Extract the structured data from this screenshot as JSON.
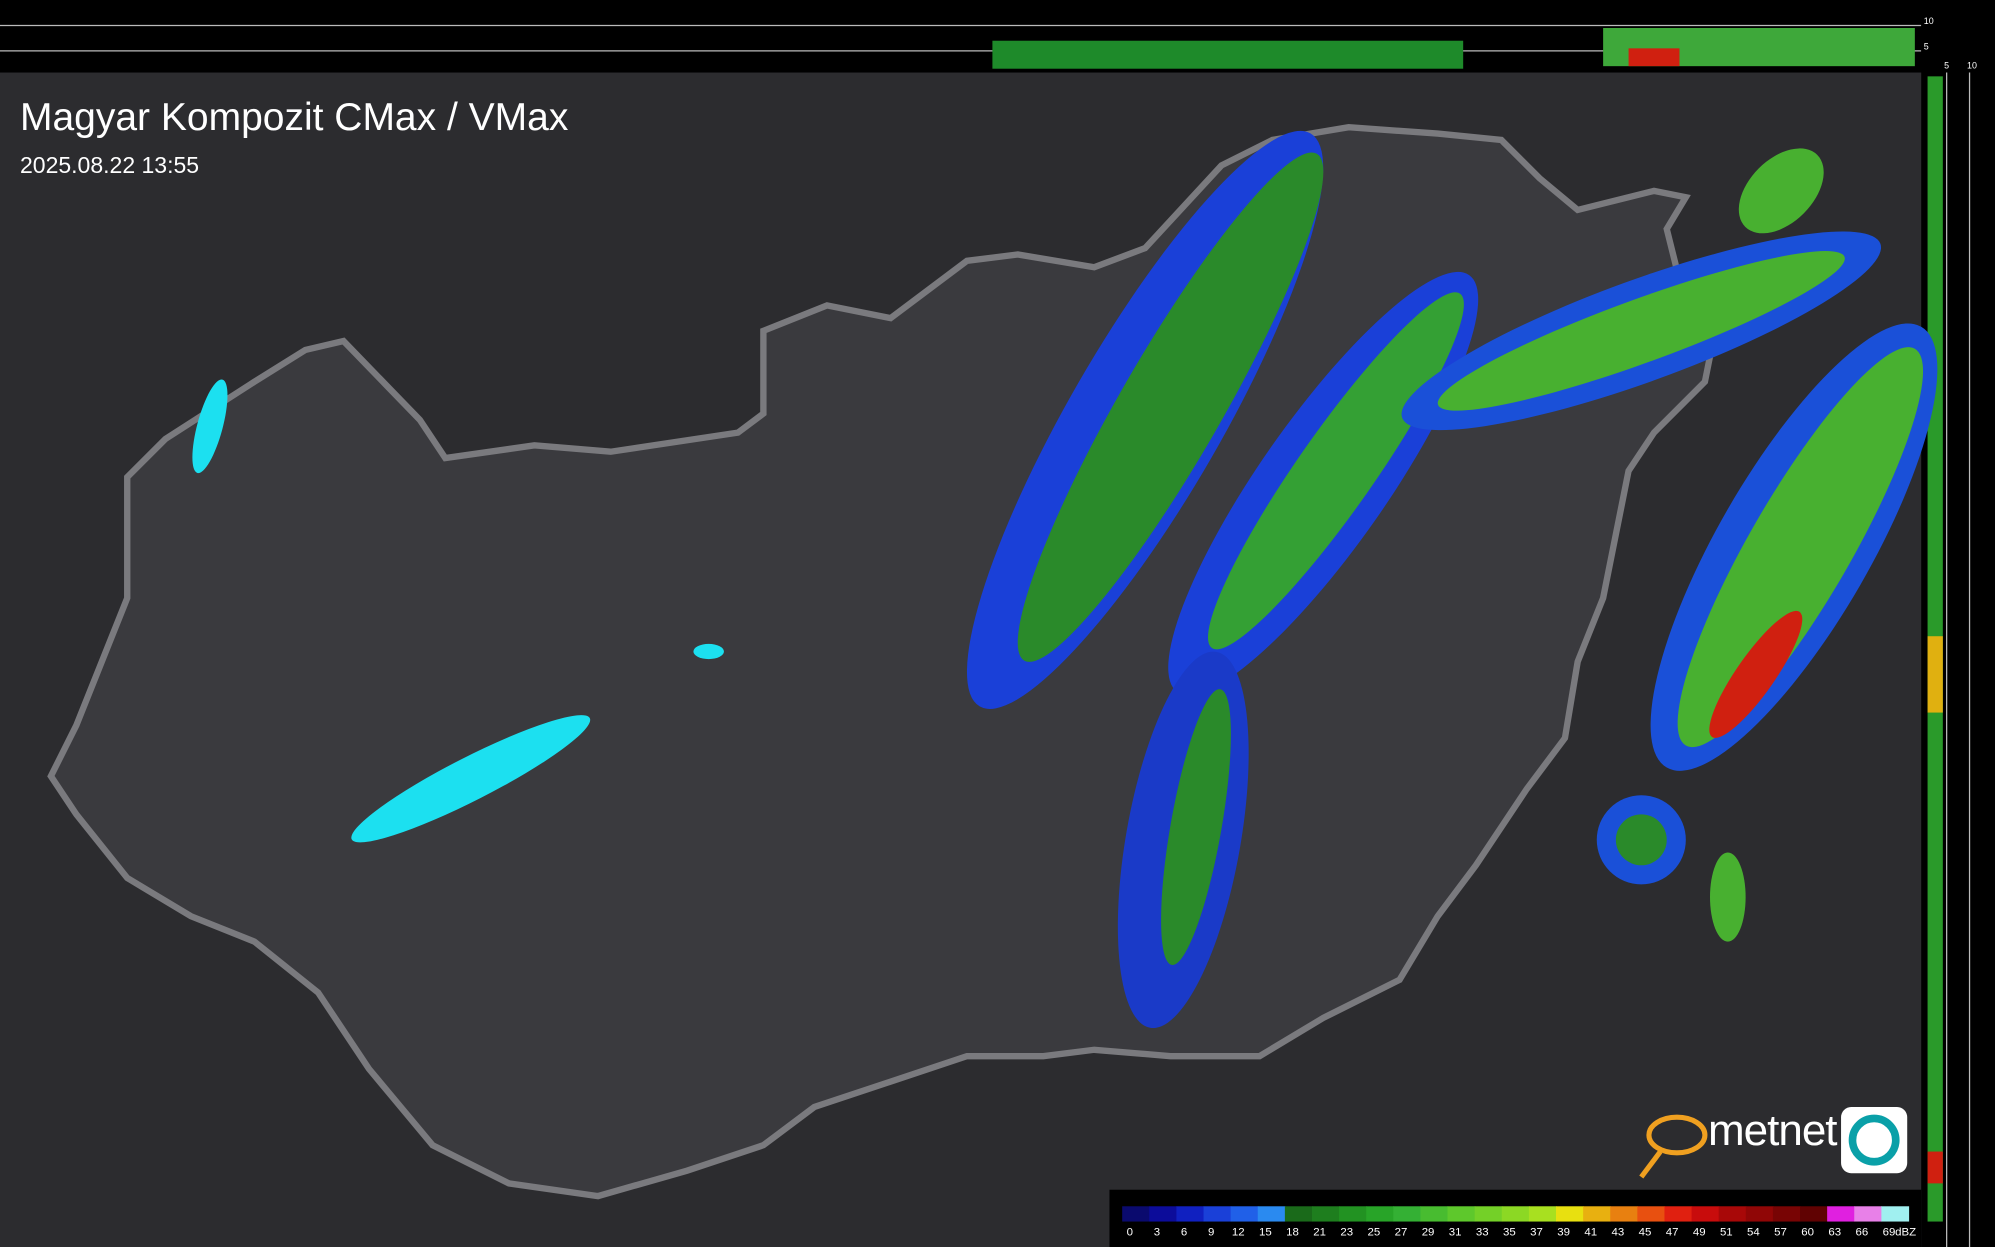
{
  "title": "Magyar Kompozit CMax / VMax",
  "timestamp": "2025.08.22 13:55",
  "logo": "metnet",
  "profile_labels": {
    "top": [
      "10",
      "5"
    ],
    "right": [
      "5",
      "10"
    ]
  },
  "legend": {
    "unit": "dBZ",
    "ticks": [
      0,
      3,
      6,
      9,
      12,
      15,
      18,
      21,
      23,
      25,
      27,
      29,
      31,
      33,
      35,
      37,
      39,
      41,
      43,
      45,
      47,
      49,
      51,
      54,
      57,
      60,
      63,
      66,
      69
    ],
    "colors": [
      "#0a0a6e",
      "#0c0c9a",
      "#1020c0",
      "#1a40d8",
      "#2060e8",
      "#2a8af0",
      "#1a6a1a",
      "#1e7e1e",
      "#229222",
      "#28a428",
      "#34b034",
      "#48bc30",
      "#5ec82c",
      "#74d028",
      "#8cd824",
      "#a8e020",
      "#e8e010",
      "#e8b010",
      "#e88010",
      "#e85010",
      "#e02010",
      "#c80c0c",
      "#a80808",
      "#900606",
      "#780404",
      "#600202",
      "#e020e0",
      "#e880e8",
      "#a0f0f0"
    ]
  }
}
